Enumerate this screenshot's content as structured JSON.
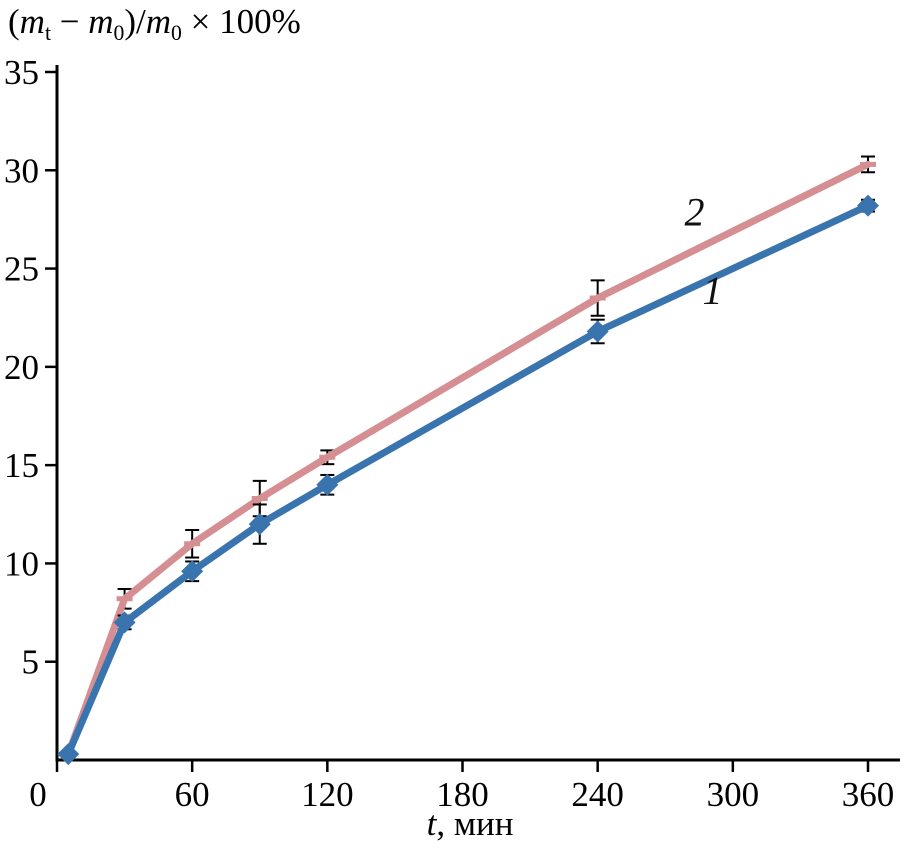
{
  "figure": {
    "background": "#ffffff",
    "axis_color": "#000000",
    "error_bar_color": "#000000"
  },
  "chart_data": {
    "type": "line",
    "title": "",
    "ylabel_parts": [
      {
        "text": "("
      },
      {
        "text": "m",
        "italic": true
      },
      {
        "text": "t",
        "sub": true
      },
      {
        "text": " − "
      },
      {
        "text": "m",
        "italic": true
      },
      {
        "text": "0",
        "sub": true
      },
      {
        "text": ")/"
      },
      {
        "text": "m",
        "italic": true
      },
      {
        "text": "0",
        "sub": true
      },
      {
        "text": " × 100%"
      }
    ],
    "xlabel_parts": [
      {
        "text": "t",
        "italic": true
      },
      {
        "text": ", мин"
      }
    ],
    "xlim": [
      0,
      360
    ],
    "ylim": [
      0,
      35
    ],
    "x_ticks": [
      0,
      60,
      120,
      180,
      240,
      300,
      360
    ],
    "y_ticks": [
      5,
      10,
      15,
      20,
      25,
      30,
      35
    ],
    "grid": false,
    "legend": "none",
    "series": [
      {
        "name": "2",
        "color": "#d58e91",
        "marker": "tick",
        "x": [
          5,
          30,
          60,
          90,
          120,
          240,
          360
        ],
        "y": [
          0.3,
          8.2,
          11.0,
          13.3,
          15.4,
          23.5,
          30.3
        ],
        "yerr": [
          0,
          0.5,
          0.7,
          0.9,
          0.35,
          0.9,
          0.4
        ],
        "label": {
          "text": "2",
          "x": 283,
          "y": 27.2
        }
      },
      {
        "name": "1",
        "color": "#3a74ae",
        "marker": "diamond",
        "x": [
          5,
          30,
          60,
          90,
          120,
          240,
          360
        ],
        "y": [
          0.3,
          7.0,
          9.6,
          12.0,
          14.0,
          21.8,
          28.2
        ],
        "yerr": [
          0,
          0.35,
          0.5,
          1.0,
          0.5,
          0.6,
          0.3
        ],
        "label": {
          "text": "1",
          "x": 291,
          "y": 23.2
        }
      }
    ]
  }
}
